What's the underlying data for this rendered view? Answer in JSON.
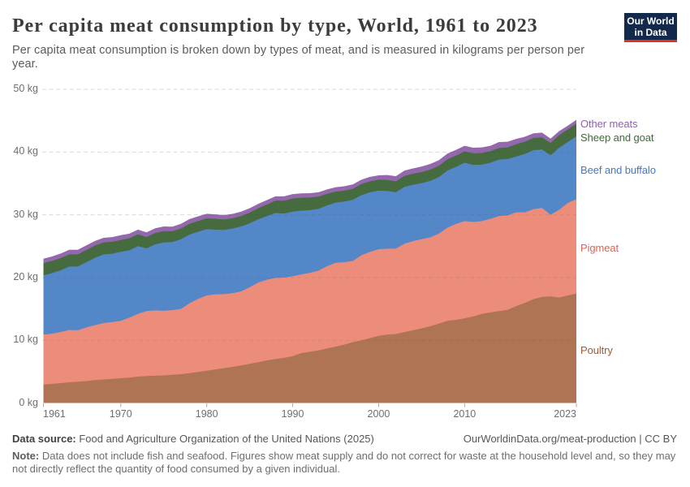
{
  "header": {
    "title": "Per capita meat consumption by type, World, 1961 to 2023",
    "subtitle": "Per capita meat consumption is broken down by types of meat, and is measured in kilograms per person per year."
  },
  "logo": {
    "line1": "Our World",
    "line2": "in Data",
    "background": "#12294b",
    "accent": "#e0321f"
  },
  "chart_data": {
    "type": "area",
    "stacked": true,
    "title": "Per capita meat consumption by type, World, 1961 to 2023",
    "xlabel": "",
    "ylabel": "kilograms per person per year",
    "ylim": [
      0,
      50
    ],
    "grid": "dashed",
    "legend_position": "right",
    "x_start": 1961,
    "x_end": 2023,
    "yticks": [
      0,
      10,
      20,
      30,
      40,
      50
    ],
    "ytick_labels": [
      "0 kg",
      "10 kg",
      "20 kg",
      "30 kg",
      "40 kg",
      "50 kg"
    ],
    "xticks": [
      1961,
      1970,
      1980,
      1990,
      2000,
      2010,
      2023
    ],
    "xtick_labels": [
      "1961",
      "1970",
      "1980",
      "1990",
      "2000",
      "2010",
      "2023"
    ],
    "series": [
      {
        "name": "Poultry",
        "color": "#ae7453",
        "label_color": "#9d5b33",
        "values": [
          2.95,
          3.05,
          3.15,
          3.3,
          3.4,
          3.5,
          3.65,
          3.75,
          3.85,
          3.95,
          4.05,
          4.2,
          4.3,
          4.35,
          4.4,
          4.5,
          4.6,
          4.75,
          4.95,
          5.15,
          5.35,
          5.55,
          5.75,
          6.0,
          6.25,
          6.5,
          6.8,
          7.0,
          7.2,
          7.45,
          7.95,
          8.15,
          8.4,
          8.7,
          9.0,
          9.3,
          9.7,
          10.0,
          10.35,
          10.7,
          10.9,
          11.0,
          11.3,
          11.6,
          11.9,
          12.25,
          12.65,
          13.1,
          13.25,
          13.5,
          13.8,
          14.2,
          14.45,
          14.65,
          14.85,
          15.45,
          15.95,
          16.55,
          16.9,
          17.0,
          16.8,
          17.15,
          17.45
        ]
      },
      {
        "name": "Pigmeat",
        "color": "#ec8d7c",
        "label_color": "#db6450",
        "values": [
          7.95,
          8.0,
          8.15,
          8.35,
          8.2,
          8.55,
          8.75,
          9.0,
          9.05,
          9.15,
          9.55,
          10.0,
          10.35,
          10.4,
          10.3,
          10.3,
          10.4,
          11.15,
          11.65,
          12.0,
          11.95,
          11.8,
          11.75,
          11.8,
          12.2,
          12.7,
          12.85,
          12.95,
          12.8,
          12.75,
          12.55,
          12.6,
          12.7,
          13.1,
          13.35,
          13.15,
          12.95,
          13.55,
          13.75,
          13.8,
          13.7,
          13.6,
          14.1,
          14.2,
          14.2,
          14.15,
          14.35,
          14.85,
          15.3,
          15.5,
          15.05,
          14.8,
          14.9,
          15.15,
          15.05,
          14.95,
          14.45,
          14.35,
          14.2,
          13.0,
          14.0,
          14.75,
          15.05
        ]
      },
      {
        "name": "Beef and buffalo",
        "color": "#5487c8",
        "label_color": "#4379be",
        "values": [
          9.45,
          9.65,
          9.85,
          10.1,
          10.15,
          10.4,
          10.75,
          10.95,
          10.9,
          11.0,
          10.75,
          10.8,
          10.0,
          10.55,
          10.9,
          10.85,
          11.1,
          10.95,
          10.7,
          10.55,
          10.35,
          10.25,
          10.3,
          10.35,
          10.2,
          10.1,
          10.15,
          10.35,
          10.2,
          10.3,
          10.17,
          10.0,
          9.85,
          9.7,
          9.6,
          9.65,
          9.75,
          9.6,
          9.5,
          9.35,
          9.2,
          9.0,
          9.05,
          9.0,
          8.95,
          9.0,
          9.0,
          9.1,
          9.1,
          9.3,
          9.1,
          9.0,
          8.95,
          9.0,
          9.0,
          8.9,
          9.3,
          9.4,
          9.3,
          9.5,
          9.9,
          9.7,
          10.0
        ]
      },
      {
        "name": "Sheep and goat",
        "color": "#456b3e",
        "label_color": "#3d6b3a",
        "values": [
          1.95,
          1.95,
          1.95,
          1.95,
          1.95,
          1.95,
          1.95,
          1.9,
          1.9,
          1.9,
          1.9,
          1.9,
          1.8,
          1.8,
          1.8,
          1.72,
          1.72,
          1.72,
          1.72,
          1.72,
          1.72,
          1.65,
          1.65,
          1.65,
          1.7,
          1.75,
          1.85,
          1.95,
          2.05,
          2.1,
          2.05,
          2.0,
          1.95,
          1.85,
          1.75,
          1.75,
          1.75,
          1.75,
          1.75,
          1.75,
          1.75,
          1.75,
          1.75,
          1.75,
          1.75,
          1.8,
          1.8,
          1.8,
          1.8,
          1.8,
          1.85,
          1.85,
          1.85,
          1.85,
          1.85,
          1.95,
          1.95,
          1.95,
          1.95,
          1.95,
          2.0,
          2.0,
          2.05
        ]
      },
      {
        "name": "Other meats",
        "color": "#9468ac",
        "label_color": "#8a63a9",
        "values": [
          0.7,
          0.7,
          0.72,
          0.72,
          0.72,
          0.73,
          0.73,
          0.74,
          0.74,
          0.75,
          0.75,
          0.75,
          0.75,
          0.75,
          0.75,
          0.75,
          0.75,
          0.75,
          0.75,
          0.75,
          0.7,
          0.7,
          0.7,
          0.7,
          0.7,
          0.7,
          0.7,
          0.7,
          0.7,
          0.7,
          0.7,
          0.7,
          0.7,
          0.7,
          0.7,
          0.7,
          0.7,
          0.7,
          0.7,
          0.7,
          0.8,
          0.8,
          0.85,
          0.85,
          0.9,
          0.9,
          0.9,
          0.9,
          0.9,
          0.9,
          0.9,
          0.9,
          0.85,
          0.95,
          0.9,
          0.85,
          0.8,
          0.75,
          0.75,
          0.7,
          0.65,
          0.6,
          0.6
        ]
      }
    ]
  },
  "footer": {
    "source_label": "Data source:",
    "source_text": " Food and Agriculture Organization of the United Nations (2025)",
    "link_text": "OurWorldinData.org/meat-production | CC BY",
    "note_label": "Note:",
    "note_text": " Data does not include fish and seafood. Figures show meat supply and do not correct for waste at the household level and, so they may not directly reflect the quantity of food consumed by a given individual."
  }
}
